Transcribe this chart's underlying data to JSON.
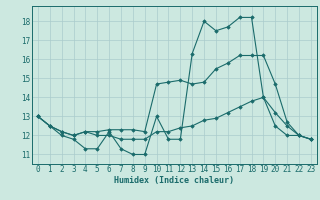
{
  "title": "",
  "xlabel": "Humidex (Indice chaleur)",
  "bg_color": "#cce8e0",
  "grid_color": "#aacccc",
  "line_color": "#1a6b6b",
  "xlim": [
    -0.5,
    23.5
  ],
  "ylim": [
    10.5,
    18.8
  ],
  "yticks": [
    11,
    12,
    13,
    14,
    15,
    16,
    17,
    18
  ],
  "xticks": [
    0,
    1,
    2,
    3,
    4,
    5,
    6,
    7,
    8,
    9,
    10,
    11,
    12,
    13,
    14,
    15,
    16,
    17,
    18,
    19,
    20,
    21,
    22,
    23
  ],
  "line1_x": [
    0,
    1,
    2,
    3,
    4,
    5,
    6,
    7,
    8,
    9,
    10,
    11,
    12,
    13,
    14,
    15,
    16,
    17,
    18,
    19,
    20,
    21,
    22,
    23
  ],
  "line1_y": [
    13.0,
    12.5,
    12.0,
    11.8,
    11.3,
    11.3,
    12.2,
    11.3,
    11.0,
    11.0,
    13.0,
    11.8,
    11.8,
    16.3,
    18.0,
    17.5,
    17.7,
    18.2,
    18.2,
    14.0,
    12.5,
    12.0,
    12.0,
    11.8
  ],
  "line2_x": [
    0,
    1,
    2,
    3,
    4,
    5,
    6,
    7,
    8,
    9,
    10,
    11,
    12,
    13,
    14,
    15,
    16,
    17,
    18,
    19,
    20,
    21,
    22,
    23
  ],
  "line2_y": [
    13.0,
    12.5,
    12.2,
    12.0,
    12.2,
    12.2,
    12.3,
    12.3,
    12.3,
    12.2,
    14.7,
    14.8,
    14.9,
    14.7,
    14.8,
    15.5,
    15.8,
    16.2,
    16.2,
    16.2,
    14.7,
    12.7,
    12.0,
    11.8
  ],
  "line3_x": [
    0,
    1,
    2,
    3,
    4,
    5,
    6,
    7,
    8,
    9,
    10,
    11,
    12,
    13,
    14,
    15,
    16,
    17,
    18,
    19,
    20,
    21,
    22,
    23
  ],
  "line3_y": [
    13.0,
    12.5,
    12.2,
    12.0,
    12.2,
    12.0,
    12.0,
    11.8,
    11.8,
    11.8,
    12.2,
    12.2,
    12.4,
    12.5,
    12.8,
    12.9,
    13.2,
    13.5,
    13.8,
    14.0,
    13.2,
    12.5,
    12.0,
    11.8
  ]
}
